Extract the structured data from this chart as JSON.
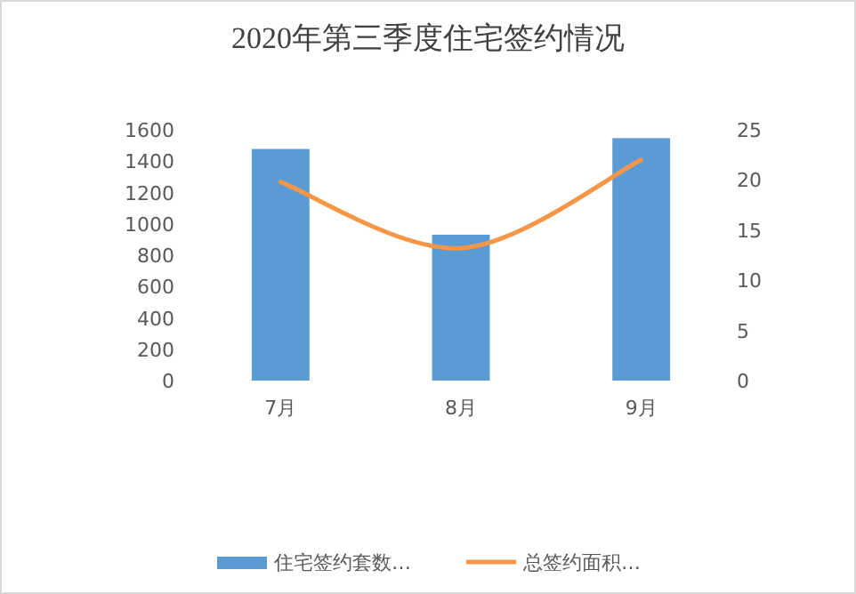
{
  "chart_data": {
    "type": "bar",
    "title": "2020年第三季度住宅签约情况",
    "categories": [
      "7月",
      "8月",
      "9月"
    ],
    "series": [
      {
        "name": "住宅签约套数…",
        "color": "#5b9bd5",
        "values": [
          1478,
          931,
          1547
        ]
      },
      {
        "name": "总签约面积…",
        "type": "line",
        "axis": "y2",
        "color": "#f79646",
        "values": [
          19.8,
          13.2,
          22.0
        ]
      }
    ],
    "ylim": [
      0,
      1600
    ],
    "yticks": [
      0,
      200,
      400,
      600,
      800,
      1000,
      1200,
      1400,
      1600
    ],
    "y2lim": [
      0,
      25
    ],
    "y2ticks": [
      0,
      5,
      10,
      15,
      20,
      25
    ],
    "legend": "bottom",
    "grid": false,
    "marker": "none"
  }
}
